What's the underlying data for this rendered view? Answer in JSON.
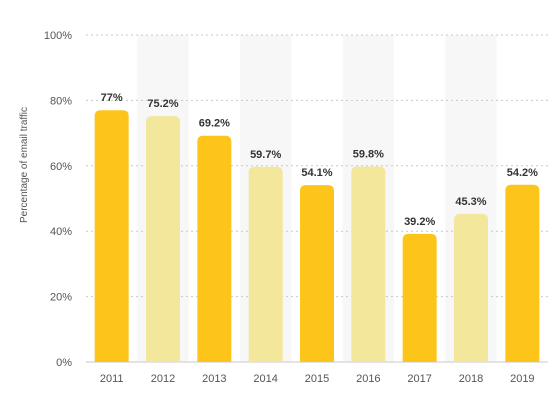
{
  "chart_data": {
    "type": "bar",
    "title": "",
    "xlabel": "",
    "ylabel": "Percentage of email traffic",
    "ylim": [
      0,
      100
    ],
    "y_ticks": [
      "0%",
      "20%",
      "40%",
      "60%",
      "80%",
      "100%"
    ],
    "categories": [
      "2011",
      "2012",
      "2013",
      "2014",
      "2015",
      "2016",
      "2017",
      "2018",
      "2019"
    ],
    "values": [
      77,
      75.2,
      69.2,
      59.7,
      54.1,
      59.8,
      39.2,
      45.3,
      54.2
    ],
    "value_labels": [
      "77%",
      "75.2%",
      "69.2%",
      "59.7%",
      "54.1%",
      "59.8%",
      "39.2%",
      "45.3%",
      "54.2%"
    ],
    "grid": true,
    "legend": "none",
    "colors": {
      "primary_bar": "#FDC41A",
      "secondary_bar": "#F2E79A",
      "alt_band": "#F7F7F7",
      "gridline": "#C9C9C9",
      "tick_text": "#555555",
      "value_text": "#333333"
    }
  }
}
